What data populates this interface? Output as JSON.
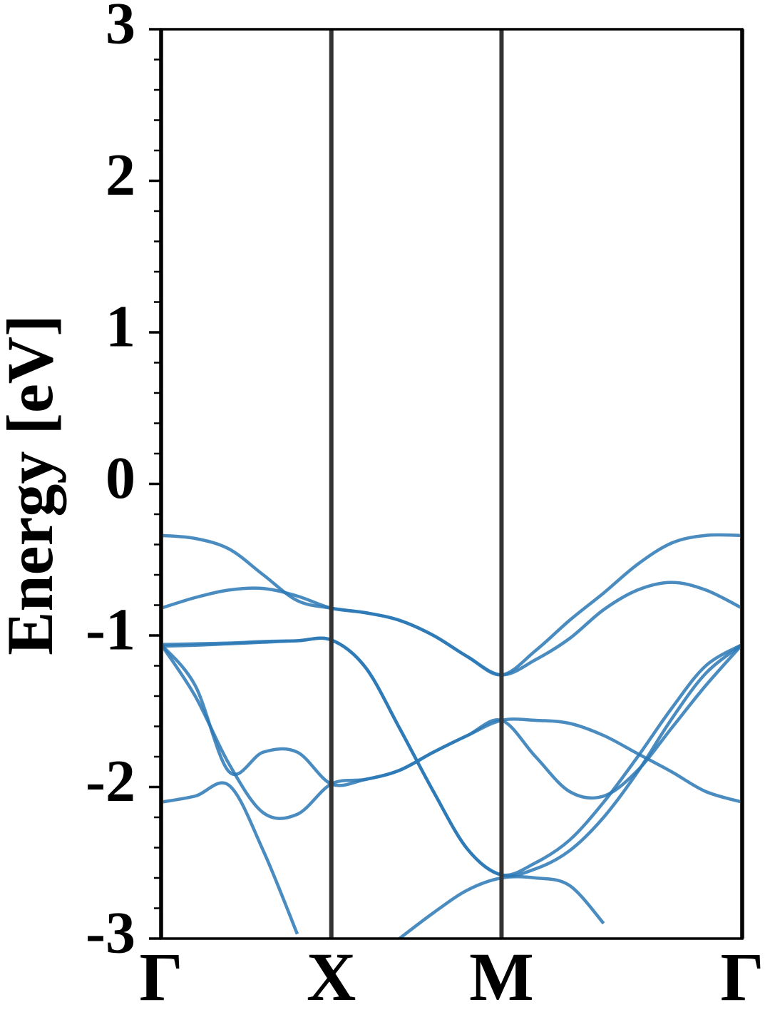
{
  "chart_data": {
    "type": "line",
    "ylabel": "Energy [eV]",
    "x": [
      0,
      0.2,
      0.4,
      0.6,
      0.8,
      1.0,
      1.2,
      1.4,
      1.6,
      1.8,
      2.0,
      2.2,
      2.4,
      2.6,
      2.8,
      3.0,
      3.2,
      3.414
    ],
    "xlim": [
      0,
      3.414
    ],
    "xticks": [
      {
        "value": 0,
        "label": "Γ"
      },
      {
        "value": 1,
        "label": "X"
      },
      {
        "value": 2,
        "label": "M"
      },
      {
        "value": 3.414,
        "label": "Γ"
      }
    ],
    "ylim": [
      -3,
      3
    ],
    "yticks": [
      -3,
      -2,
      -1,
      0,
      1,
      2,
      3
    ],
    "yminorticks": [
      -2.8,
      -2.6,
      -2.4,
      -2.2,
      -1.8,
      -1.6,
      -1.4,
      -1.2,
      -0.8,
      -0.6,
      -0.4,
      -0.2,
      0.2,
      0.4,
      0.6,
      0.8,
      1.2,
      1.4,
      1.6,
      1.8,
      2.2,
      2.4,
      2.6,
      2.8
    ],
    "vlines": true,
    "series": [
      {
        "color": "#2a78b5",
        "values": [
          -0.34,
          -0.36,
          -0.43,
          -0.6,
          -0.77,
          -0.82,
          -0.85,
          -0.9,
          -1.0,
          -1.14,
          -1.26,
          -1.1,
          -0.9,
          -0.72,
          -0.53,
          -0.39,
          -0.34,
          -0.34
        ]
      },
      {
        "color": "#2a78b5",
        "values": [
          -0.82,
          -0.75,
          -0.7,
          -0.69,
          -0.74,
          -0.82,
          -0.85,
          -0.9,
          -1.0,
          -1.14,
          -1.26,
          -1.16,
          -1.02,
          -0.83,
          -0.7,
          -0.65,
          -0.7,
          -0.82
        ]
      },
      {
        "color": "#2a78b5",
        "values": [
          -1.06,
          -1.055,
          -1.05,
          -1.04,
          -1.035,
          -1.03,
          -1.21,
          -1.61,
          -2.03,
          -2.41,
          -2.58,
          -2.5,
          -2.35,
          -2.1,
          -1.8,
          -1.48,
          -1.2,
          -1.06
        ]
      },
      {
        "color": "#2a78b5",
        "values": [
          -1.07,
          -1.065,
          -1.055,
          -1.045,
          -1.035,
          -1.03,
          -1.21,
          -1.61,
          -2.03,
          -2.41,
          -2.58,
          -2.54,
          -2.42,
          -2.2,
          -1.9,
          -1.55,
          -1.25,
          -1.06
        ]
      },
      {
        "color": "#2a78b5",
        "values": [
          -1.06,
          -1.33,
          -1.9,
          -1.77,
          -1.77,
          -1.98,
          -1.95,
          -1.89,
          -1.77,
          -1.66,
          -1.56,
          -1.56,
          -1.58,
          -1.66,
          -1.78,
          -1.9,
          -2.03,
          -2.1
        ]
      },
      {
        "color": "#2a78b5",
        "values": [
          -1.06,
          -1.4,
          -1.85,
          -2.17,
          -2.18,
          -1.98,
          -1.95,
          -1.89,
          -1.77,
          -1.66,
          -1.56,
          -1.8,
          -2.03,
          -2.06,
          -1.89,
          -1.61,
          -1.33,
          -1.06
        ]
      },
      {
        "color": "#2a78b5",
        "values": [
          -2.1,
          -2.06,
          -1.99,
          -2.42,
          -2.97,
          null,
          null,
          -3.0,
          -2.83,
          -2.68,
          -2.6,
          -2.6,
          -2.65,
          -2.9,
          null,
          null,
          null,
          null
        ]
      }
    ]
  }
}
